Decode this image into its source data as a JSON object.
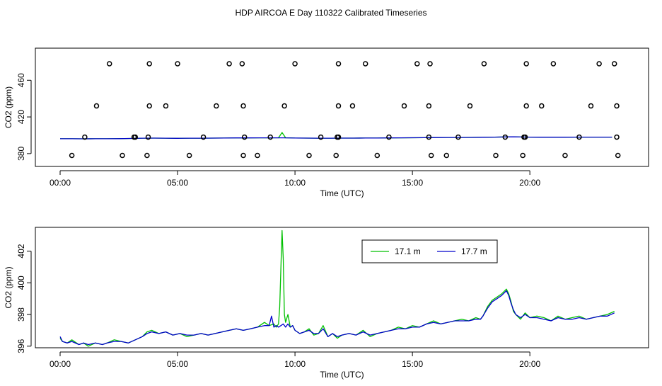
{
  "page": {
    "title": "HDP AIRCOA E  Day 110322  Calibrated Timeseries"
  },
  "chart_data": [
    {
      "type": "scatter",
      "xlabel": "Time (UTC)",
      "ylabel": "CO2 (ppm)",
      "xlim": [
        0,
        24
      ],
      "ylim": [
        366,
        495
      ],
      "x_ticks": [
        {
          "v": 0,
          "label": "00:00"
        },
        {
          "v": 5,
          "label": "05:00"
        },
        {
          "v": 10,
          "label": "10:00"
        },
        {
          "v": 15,
          "label": "15:00"
        },
        {
          "v": 20,
          "label": "20:00"
        }
      ],
      "y_ticks": [
        {
          "v": 380,
          "label": "380"
        },
        {
          "v": 420,
          "label": "420"
        },
        {
          "v": 460,
          "label": "460"
        }
      ],
      "grid": false,
      "marker_points": [
        [
          2.1,
          478
        ],
        [
          3.8,
          478
        ],
        [
          5.0,
          478
        ],
        [
          7.2,
          478
        ],
        [
          7.75,
          478
        ],
        [
          10.0,
          478
        ],
        [
          11.85,
          478
        ],
        [
          13.0,
          478
        ],
        [
          15.2,
          478
        ],
        [
          15.75,
          478
        ],
        [
          18.05,
          478
        ],
        [
          19.85,
          478
        ],
        [
          21.0,
          478
        ],
        [
          22.95,
          478
        ],
        [
          23.6,
          478
        ],
        [
          1.55,
          432
        ],
        [
          3.8,
          432
        ],
        [
          4.5,
          432
        ],
        [
          6.65,
          432
        ],
        [
          7.8,
          432
        ],
        [
          9.55,
          432
        ],
        [
          11.85,
          432
        ],
        [
          12.45,
          432
        ],
        [
          14.65,
          432
        ],
        [
          15.7,
          432
        ],
        [
          17.45,
          432
        ],
        [
          19.85,
          432
        ],
        [
          20.5,
          432
        ],
        [
          22.6,
          432
        ],
        [
          23.7,
          432
        ],
        [
          1.05,
          398
        ],
        [
          3.15,
          398
        ],
        [
          3.2,
          398
        ],
        [
          3.75,
          398
        ],
        [
          6.1,
          398
        ],
        [
          7.85,
          398
        ],
        [
          8.95,
          398
        ],
        [
          11.1,
          398
        ],
        [
          11.8,
          398
        ],
        [
          11.85,
          398
        ],
        [
          14.0,
          398
        ],
        [
          15.7,
          398
        ],
        [
          16.95,
          398
        ],
        [
          18.95,
          398
        ],
        [
          19.75,
          398
        ],
        [
          19.8,
          398
        ],
        [
          22.1,
          398
        ],
        [
          23.7,
          398
        ],
        [
          0.5,
          378
        ],
        [
          2.65,
          378
        ],
        [
          3.7,
          378
        ],
        [
          5.5,
          378
        ],
        [
          7.8,
          378
        ],
        [
          8.4,
          378
        ],
        [
          10.6,
          378
        ],
        [
          11.75,
          378
        ],
        [
          13.5,
          378
        ],
        [
          15.8,
          378
        ],
        [
          16.45,
          378
        ],
        [
          18.55,
          378
        ],
        [
          19.7,
          378
        ],
        [
          21.5,
          378
        ],
        [
          23.75,
          378
        ]
      ],
      "series": [
        {
          "color": "#00c000",
          "x": [
            0,
            0.5,
            1,
            1.5,
            2,
            2.5,
            3,
            3.5,
            4,
            4.5,
            5,
            5.5,
            6,
            6.5,
            7,
            7.5,
            8,
            8.5,
            9,
            9.3,
            9.45,
            9.6,
            9.8,
            10,
            10.5,
            11,
            11.5,
            12,
            12.5,
            13,
            13.5,
            14,
            14.5,
            15,
            15.5,
            16,
            16.5,
            17,
            17.5,
            18,
            18.5,
            19,
            19.3,
            19.6,
            20,
            20.5,
            21,
            21.5,
            22,
            22.5,
            23,
            23.5
          ],
          "y": [
            396.2,
            396.2,
            396.1,
            396.2,
            396.2,
            396.3,
            396.5,
            396.8,
            396.9,
            396.8,
            396.7,
            396.8,
            396.8,
            396.9,
            397.0,
            397.1,
            397.1,
            397.2,
            397.2,
            397.3,
            403.0,
            397.3,
            397.2,
            397.0,
            396.9,
            396.8,
            396.8,
            396.9,
            396.9,
            397.0,
            397.0,
            397.1,
            397.2,
            397.3,
            397.4,
            397.5,
            397.6,
            397.6,
            397.7,
            397.8,
            398.0,
            398.2,
            398.3,
            398.1,
            398.0,
            397.9,
            397.9,
            397.9,
            398.0,
            398.0,
            398.0,
            398.0
          ]
        },
        {
          "color": "#0000cc",
          "x": [
            0,
            0.5,
            1,
            1.5,
            2,
            2.5,
            3,
            3.5,
            4,
            4.5,
            5,
            5.5,
            6,
            6.5,
            7,
            7.5,
            8,
            8.5,
            9,
            9.5,
            10,
            10.5,
            11,
            11.5,
            12,
            12.5,
            13,
            13.5,
            14,
            14.5,
            15,
            15.5,
            16,
            16.5,
            17,
            17.5,
            18,
            18.5,
            19,
            19.3,
            19.6,
            20,
            20.5,
            21,
            21.5,
            22,
            22.5,
            23,
            23.5
          ],
          "y": [
            396.2,
            396.2,
            396.1,
            396.2,
            396.2,
            396.3,
            396.5,
            396.8,
            396.9,
            396.8,
            396.7,
            396.8,
            396.8,
            396.9,
            397.0,
            397.1,
            397.1,
            397.2,
            397.2,
            397.2,
            397.0,
            396.9,
            396.8,
            396.8,
            396.9,
            396.9,
            397.0,
            397.0,
            397.1,
            397.2,
            397.3,
            397.4,
            397.5,
            397.6,
            397.6,
            397.7,
            397.8,
            398.0,
            398.2,
            398.3,
            398.1,
            398.0,
            397.9,
            397.9,
            397.9,
            398.0,
            398.0,
            398.0,
            398.0
          ]
        }
      ]
    },
    {
      "type": "line",
      "xlabel": "Time (UTC)",
      "ylabel": "CO2 (ppm)",
      "xlim": [
        0,
        24
      ],
      "ylim": [
        395.9,
        403.5
      ],
      "x_ticks": [
        {
          "v": 0,
          "label": "00:00"
        },
        {
          "v": 5,
          "label": "05:00"
        },
        {
          "v": 10,
          "label": "10:00"
        },
        {
          "v": 15,
          "label": "15:00"
        },
        {
          "v": 20,
          "label": "20:00"
        }
      ],
      "y_ticks": [
        {
          "v": 396,
          "label": "396"
        },
        {
          "v": 398,
          "label": "398"
        },
        {
          "v": 400,
          "label": "400"
        },
        {
          "v": 402,
          "label": "402"
        }
      ],
      "grid": false,
      "legend_position": "top-right",
      "series": [
        {
          "name": "17.1 m",
          "color": "#00c000",
          "x": [
            0,
            0.1,
            0.3,
            0.5,
            0.8,
            1.0,
            1.2,
            1.5,
            1.8,
            2.0,
            2.3,
            2.6,
            2.9,
            3.2,
            3.5,
            3.7,
            3.9,
            4.2,
            4.5,
            4.8,
            5.1,
            5.4,
            5.7,
            6.0,
            6.3,
            6.6,
            6.9,
            7.2,
            7.5,
            7.8,
            8.1,
            8.4,
            8.7,
            8.9,
            9.1,
            9.2,
            9.3,
            9.35,
            9.4,
            9.45,
            9.5,
            9.55,
            9.6,
            9.7,
            9.8,
            9.9,
            10.0,
            10.2,
            10.4,
            10.6,
            10.8,
            11.0,
            11.2,
            11.4,
            11.6,
            11.8,
            12.0,
            12.3,
            12.6,
            12.9,
            13.2,
            13.5,
            13.8,
            14.1,
            14.4,
            14.7,
            15.0,
            15.3,
            15.6,
            15.9,
            16.2,
            16.5,
            16.8,
            17.1,
            17.4,
            17.7,
            17.9,
            18.0,
            18.2,
            18.4,
            18.6,
            18.8,
            19.0,
            19.1,
            19.2,
            19.3,
            19.4,
            19.6,
            19.8,
            20.0,
            20.3,
            20.6,
            20.9,
            21.2,
            21.5,
            21.8,
            22.1,
            22.4,
            22.7,
            23.0,
            23.3,
            23.6
          ],
          "y": [
            396.5,
            396.3,
            396.2,
            396.4,
            396.1,
            396.2,
            396.0,
            396.2,
            396.1,
            396.2,
            396.4,
            396.3,
            396.2,
            396.4,
            396.6,
            396.9,
            397.0,
            396.8,
            396.9,
            396.7,
            396.8,
            396.6,
            396.7,
            396.8,
            396.7,
            396.8,
            396.9,
            397.0,
            397.1,
            397.0,
            397.1,
            397.2,
            397.5,
            397.3,
            397.4,
            397.2,
            397.4,
            398.5,
            401.0,
            403.3,
            401.5,
            398.0,
            397.5,
            398.0,
            397.2,
            397.3,
            397.0,
            396.8,
            396.9,
            397.1,
            396.7,
            396.8,
            397.3,
            396.6,
            396.8,
            396.5,
            396.7,
            396.8,
            396.7,
            397.0,
            396.6,
            396.8,
            396.9,
            397.0,
            397.2,
            397.1,
            397.3,
            397.2,
            397.4,
            397.6,
            397.4,
            397.5,
            397.6,
            397.7,
            397.6,
            397.8,
            397.7,
            397.9,
            398.5,
            398.9,
            399.1,
            399.3,
            399.6,
            399.3,
            398.8,
            398.2,
            398.0,
            397.7,
            398.1,
            397.8,
            397.9,
            397.8,
            397.6,
            397.9,
            397.7,
            397.8,
            397.9,
            397.7,
            397.8,
            397.9,
            398.0,
            398.2
          ]
        },
        {
          "name": "17.7 m",
          "color": "#0000cc",
          "x": [
            0,
            0.1,
            0.3,
            0.5,
            0.8,
            1.0,
            1.2,
            1.5,
            1.8,
            2.0,
            2.3,
            2.6,
            2.9,
            3.2,
            3.5,
            3.7,
            3.9,
            4.2,
            4.5,
            4.8,
            5.1,
            5.4,
            5.7,
            6.0,
            6.3,
            6.6,
            6.9,
            7.2,
            7.5,
            7.8,
            8.1,
            8.4,
            8.7,
            8.9,
            9.0,
            9.1,
            9.2,
            9.3,
            9.4,
            9.5,
            9.6,
            9.7,
            9.8,
            9.9,
            10.0,
            10.2,
            10.4,
            10.6,
            10.8,
            11.0,
            11.2,
            11.4,
            11.6,
            11.8,
            12.0,
            12.3,
            12.6,
            12.9,
            13.2,
            13.5,
            13.8,
            14.1,
            14.4,
            14.7,
            15.0,
            15.3,
            15.6,
            15.9,
            16.2,
            16.5,
            16.8,
            17.1,
            17.4,
            17.7,
            17.9,
            18.0,
            18.2,
            18.4,
            18.6,
            18.8,
            19.0,
            19.1,
            19.2,
            19.3,
            19.4,
            19.6,
            19.8,
            20.0,
            20.3,
            20.6,
            20.9,
            21.2,
            21.5,
            21.8,
            22.1,
            22.4,
            22.7,
            23.0,
            23.3,
            23.6
          ],
          "y": [
            396.6,
            396.3,
            396.2,
            396.3,
            396.1,
            396.2,
            396.1,
            396.2,
            396.1,
            396.2,
            396.3,
            396.3,
            396.2,
            396.4,
            396.6,
            396.8,
            396.9,
            396.8,
            396.9,
            396.7,
            396.8,
            396.7,
            396.7,
            396.8,
            396.7,
            396.8,
            396.9,
            397.0,
            397.1,
            397.0,
            397.1,
            397.2,
            397.3,
            397.3,
            397.9,
            397.2,
            397.3,
            397.2,
            397.3,
            397.4,
            397.2,
            397.4,
            397.2,
            397.3,
            397.0,
            396.8,
            396.9,
            397.0,
            396.8,
            396.8,
            397.1,
            396.6,
            396.8,
            396.6,
            396.7,
            396.8,
            396.7,
            396.9,
            396.7,
            396.8,
            396.9,
            397.0,
            397.1,
            397.1,
            397.2,
            397.2,
            397.4,
            397.5,
            397.4,
            397.5,
            397.6,
            397.6,
            397.6,
            397.7,
            397.7,
            397.9,
            398.4,
            398.8,
            399.0,
            399.2,
            399.5,
            399.2,
            398.7,
            398.3,
            398.0,
            397.8,
            398.0,
            397.8,
            397.8,
            397.7,
            397.6,
            397.8,
            397.7,
            397.7,
            397.8,
            397.7,
            397.8,
            397.9,
            397.9,
            398.1
          ]
        }
      ]
    }
  ]
}
